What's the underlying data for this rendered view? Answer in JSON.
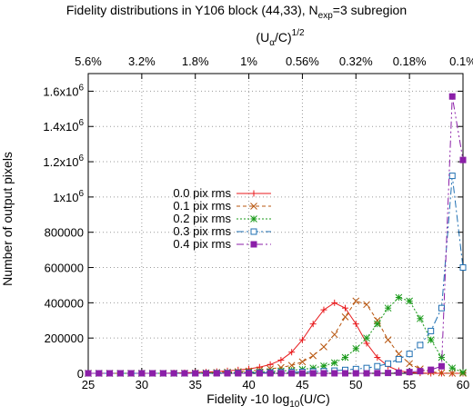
{
  "chart_data": {
    "type": "line",
    "title": "Fidelity distributions in Y106 block (44,33), N",
    "title_sub": "exp",
    "title_suffix": "=3 subregion",
    "xlabel_main": "Fidelity -10 log",
    "xlabel_sub": "10",
    "xlabel_suffix": "(U/C)",
    "x2label_main": "(U",
    "x2label_sub": "α",
    "x2label_suffix": "/C)",
    "x2label_sup": "1/2",
    "ylabel": "Number of output pixels",
    "xlim": [
      25,
      60
    ],
    "ylim": [
      0,
      1700000
    ],
    "xticks": [
      25,
      30,
      35,
      40,
      45,
      50,
      55,
      60
    ],
    "yticks": [
      {
        "value": 0,
        "label": "0"
      },
      {
        "value": 200000,
        "label": "200000"
      },
      {
        "value": 400000,
        "label": "400000"
      },
      {
        "value": 600000,
        "label": "600000"
      },
      {
        "value": 800000,
        "label": "800000"
      },
      {
        "value": 1000000,
        "label": "1x10",
        "exp": "6"
      },
      {
        "value": 1200000,
        "label": "1.2x10",
        "exp": "6"
      },
      {
        "value": 1400000,
        "label": "1.4x10",
        "exp": "6"
      },
      {
        "value": 1600000,
        "label": "1.6x10",
        "exp": "6"
      }
    ],
    "x2ticks": [
      {
        "x": 25,
        "label": "5.6%"
      },
      {
        "x": 30,
        "label": "3.2%"
      },
      {
        "x": 35,
        "label": "1.8%"
      },
      {
        "x": 40,
        "label": "1%"
      },
      {
        "x": 45,
        "label": "0.56%"
      },
      {
        "x": 50,
        "label": "0.32%"
      },
      {
        "x": 55,
        "label": "0.18%"
      },
      {
        "x": 60,
        "label": "0.1%"
      }
    ],
    "grid": true,
    "legend_position": "center-left",
    "series": [
      {
        "name": "0.0 pix rms",
        "color": "#e8191c",
        "marker": "plus",
        "dash": "",
        "x": [
          25,
          26,
          27,
          28,
          29,
          30,
          31,
          32,
          33,
          34,
          35,
          36,
          37,
          38,
          39,
          40,
          41,
          42,
          43,
          44,
          45,
          46,
          47,
          48,
          49,
          50,
          51,
          52,
          53,
          54,
          55,
          56,
          57,
          58,
          59,
          60
        ],
        "y": [
          0,
          0,
          0,
          0,
          0,
          0,
          0,
          0,
          2000,
          3000,
          5000,
          7000,
          10000,
          14000,
          19000,
          25000,
          35000,
          50000,
          75000,
          120000,
          190000,
          280000,
          360000,
          400000,
          370000,
          280000,
          170000,
          90000,
          40000,
          15000,
          5000,
          2000,
          0,
          0,
          0,
          0
        ]
      },
      {
        "name": "0.1 pix rms",
        "color": "#b8560f",
        "marker": "cross",
        "dash": "4,3",
        "x": [
          25,
          26,
          27,
          28,
          29,
          30,
          31,
          32,
          33,
          34,
          35,
          36,
          37,
          38,
          39,
          40,
          41,
          42,
          43,
          44,
          45,
          46,
          47,
          48,
          49,
          50,
          51,
          52,
          53,
          54,
          55,
          56,
          57,
          58,
          59,
          60
        ],
        "y": [
          0,
          0,
          0,
          0,
          0,
          0,
          0,
          0,
          0,
          1000,
          2000,
          3000,
          5000,
          7000,
          10000,
          13000,
          18000,
          25000,
          33000,
          45000,
          65000,
          100000,
          150000,
          220000,
          320000,
          410000,
          390000,
          300000,
          190000,
          110000,
          55000,
          25000,
          8000,
          2000,
          0,
          0
        ]
      },
      {
        "name": "0.2 pix rms",
        "color": "#1a9a1a",
        "marker": "star",
        "dash": "2,2",
        "x": [
          25,
          26,
          27,
          28,
          29,
          30,
          31,
          32,
          33,
          34,
          35,
          36,
          37,
          38,
          39,
          40,
          41,
          42,
          43,
          44,
          45,
          46,
          47,
          48,
          49,
          50,
          51,
          52,
          53,
          54,
          55,
          56,
          57,
          58,
          59,
          60
        ],
        "y": [
          0,
          0,
          0,
          0,
          0,
          0,
          0,
          0,
          0,
          0,
          1000,
          2000,
          3000,
          4000,
          5000,
          6000,
          8000,
          10000,
          13000,
          17000,
          22000,
          30000,
          42000,
          60000,
          90000,
          140000,
          200000,
          280000,
          370000,
          430000,
          410000,
          310000,
          190000,
          90000,
          30000,
          5000
        ]
      },
      {
        "name": "0.3 pix rms",
        "color": "#1f6fb2",
        "marker": "square",
        "dash": "8,3,2,3",
        "x": [
          25,
          26,
          27,
          28,
          29,
          30,
          31,
          32,
          33,
          34,
          35,
          36,
          37,
          38,
          39,
          40,
          41,
          42,
          43,
          44,
          45,
          46,
          47,
          48,
          49,
          50,
          51,
          52,
          53,
          54,
          55,
          56,
          57,
          58,
          59,
          60
        ],
        "y": [
          0,
          0,
          0,
          0,
          0,
          0,
          0,
          0,
          0,
          0,
          0,
          0,
          1000,
          1500,
          2000,
          3000,
          4000,
          5000,
          6000,
          7000,
          8000,
          10000,
          12000,
          15000,
          19000,
          24000,
          30000,
          40000,
          55000,
          80000,
          110000,
          160000,
          240000,
          370000,
          1120000,
          600000
        ]
      },
      {
        "name": "0.4 pix rms",
        "color": "#8b1fa8",
        "marker": "filled-square",
        "dash": "8,3,2,3,2,3",
        "x": [
          25,
          26,
          27,
          28,
          29,
          30,
          31,
          32,
          33,
          34,
          35,
          36,
          37,
          38,
          39,
          40,
          41,
          42,
          43,
          44,
          45,
          46,
          47,
          48,
          49,
          50,
          51,
          52,
          53,
          54,
          55,
          56,
          57,
          58,
          59,
          60
        ],
        "y": [
          0,
          0,
          0,
          0,
          0,
          0,
          0,
          0,
          0,
          0,
          0,
          0,
          0,
          0,
          0,
          0,
          0,
          0,
          0,
          0,
          0,
          0,
          0,
          0,
          0,
          0,
          0,
          1000,
          2000,
          4000,
          7000,
          12000,
          20000,
          40000,
          1570000,
          1210000
        ]
      }
    ]
  }
}
